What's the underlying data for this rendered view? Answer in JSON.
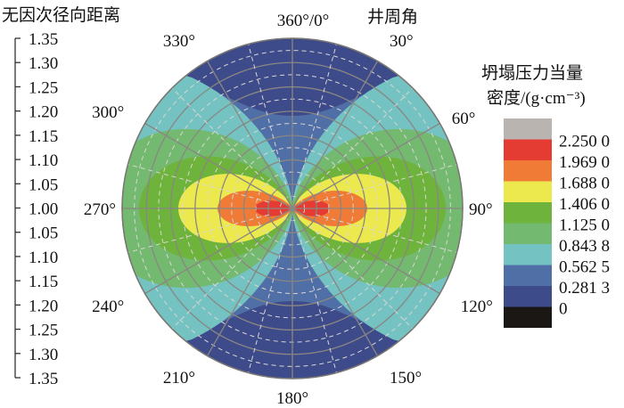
{
  "chart_data": {
    "type": "heatmap",
    "subtype": "polar-contour",
    "radial_axis": {
      "title": "无因次径向距离",
      "tick_labels": [
        "1.35",
        "1.30",
        "1.25",
        "1.20",
        "1.15",
        "1.10",
        "1.05",
        "1.00",
        "1.05",
        "1.10",
        "1.15",
        "1.20",
        "1.25",
        "1.30",
        "1.35"
      ],
      "range": [
        1.0,
        1.35
      ]
    },
    "angular_axis": {
      "title": "井周角",
      "ticks": [
        {
          "angle": 0,
          "label": "360°/0°"
        },
        {
          "angle": 30,
          "label": "30°"
        },
        {
          "angle": 60,
          "label": "60°"
        },
        {
          "angle": 90,
          "label": "90°"
        },
        {
          "angle": 120,
          "label": "120°"
        },
        {
          "angle": 150,
          "label": "150°"
        },
        {
          "angle": 180,
          "label": "180°"
        },
        {
          "angle": 210,
          "label": "210°"
        },
        {
          "angle": 240,
          "label": "240°"
        },
        {
          "angle": 270,
          "label": "270°"
        },
        {
          "angle": 300,
          "label": "300°"
        },
        {
          "angle": 330,
          "label": "330°"
        }
      ]
    },
    "colorbar": {
      "title_line1": "坍塌压力当量",
      "title_line2": "密度/(g·cm⁻³)",
      "levels": [
        "2.250 0",
        "1.969 0",
        "1.688 0",
        "1.406 0",
        "1.125 0",
        "0.843 8",
        "0.562 5",
        "0.281 3",
        "0"
      ],
      "colors": [
        "#bab4b1",
        "#e43b33",
        "#ef7b36",
        "#ece94f",
        "#6db33c",
        "#74b970",
        "#74c3c2",
        "#516fa7",
        "#3e4b8b",
        "#1b1715"
      ]
    },
    "description_values": {
      "max_region": "1.969 0–2.250 0 near wellbore along 90°/270°",
      "min_region": "0–0.281 3 near 0° and 180° at outer radius"
    }
  }
}
